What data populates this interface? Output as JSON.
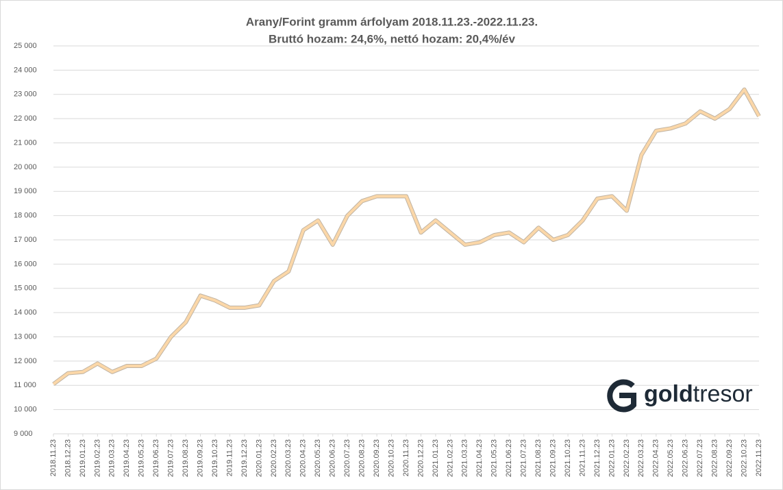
{
  "chart_data": {
    "type": "line",
    "title": "Arany/Forint gramm árfolyam 2018.11.23.-2022.11.23.",
    "subtitle": "Bruttó hozam: 24,6%, nettó hozam: 20,4%/év",
    "logo": {
      "bold": "gold",
      "text": "tresor"
    },
    "categories": [
      "2018.11.23",
      "2018.12.23",
      "2019.01.23",
      "2019.02.23",
      "2019.03.23",
      "2019.04.23",
      "2019.05.23",
      "2019.06.23",
      "2019.07.23",
      "2019.08.23",
      "2019.09.23",
      "2019.10.23",
      "2019.11.23",
      "2019.12.23",
      "2020.01.23",
      "2020.02.23",
      "2020.03.23",
      "2020.04.23",
      "2020.05.23",
      "2020.06.23",
      "2020.07.23",
      "2020.08.23",
      "2020.09.23",
      "2020.10.23",
      "2020.11.23",
      "2020.12.23",
      "2021.01.23",
      "2021.02.23",
      "2021.03.23",
      "2021.04.23",
      "2021.05.23",
      "2021.06.23",
      "2021.07.23",
      "2021.08.23",
      "2021.09.23",
      "2021.10.23",
      "2021.11.23",
      "2021.12.23",
      "2022.01.23",
      "2022.02.23",
      "2022.03.23",
      "2022.04.23",
      "2022.05.23",
      "2022.06.23",
      "2022.07.23",
      "2022.08.23",
      "2022.09.23",
      "2022.10.23",
      "2022.11.23"
    ],
    "series": [
      {
        "color": "#fbd7a8",
        "values": [
          11050,
          11500,
          11550,
          11900,
          11550,
          11800,
          11800,
          12100,
          13000,
          13600,
          14700,
          14500,
          14200,
          14200,
          14300,
          15300,
          15700,
          17400,
          17800,
          16800,
          18000,
          18600,
          18800,
          18800,
          18800,
          17300,
          17800,
          17300,
          16800,
          16900,
          17200,
          17300,
          16900,
          17500,
          17000,
          17200,
          17800,
          18700,
          18800,
          18200,
          20500,
          21500,
          21600,
          21800,
          22300,
          22000,
          22400,
          23200,
          22100
        ]
      }
    ],
    "ylim": [
      9000,
      25000
    ],
    "yticks": [
      {
        "value": 9000,
        "label": "9 000"
      },
      {
        "value": 10000,
        "label": "10 000"
      },
      {
        "value": 11000,
        "label": "11 000"
      },
      {
        "value": 12000,
        "label": "12 000"
      },
      {
        "value": 13000,
        "label": "13 000"
      },
      {
        "value": 14000,
        "label": "14 000"
      },
      {
        "value": 15000,
        "label": "15 000"
      },
      {
        "value": 16000,
        "label": "16 000"
      },
      {
        "value": 17000,
        "label": "17 000"
      },
      {
        "value": 18000,
        "label": "18 000"
      },
      {
        "value": 19000,
        "label": "19 000"
      },
      {
        "value": 20000,
        "label": "20 000"
      },
      {
        "value": 21000,
        "label": "21 000"
      },
      {
        "value": 22000,
        "label": "22 000"
      },
      {
        "value": 23000,
        "label": "23 000"
      },
      {
        "value": 24000,
        "label": "24 000"
      },
      {
        "value": 25000,
        "label": "25 000"
      }
    ],
    "grid": true
  }
}
